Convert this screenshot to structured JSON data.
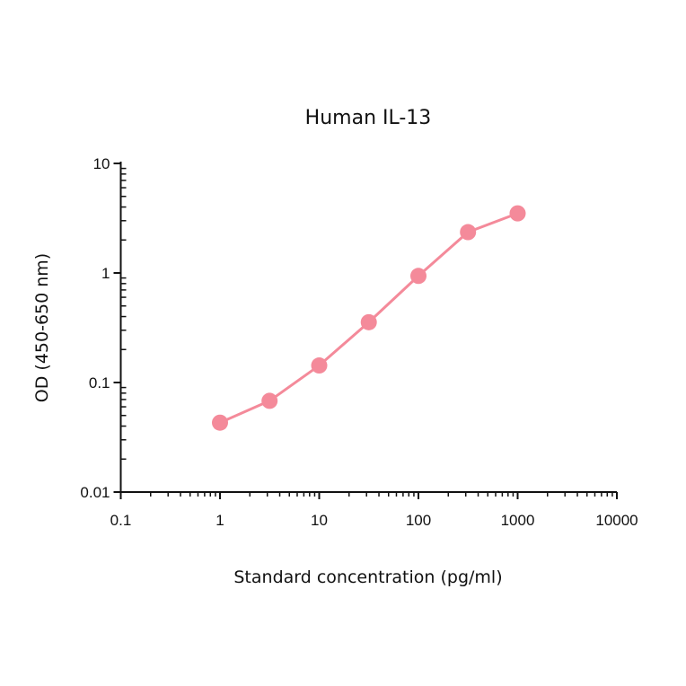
{
  "chart_data": {
    "type": "line",
    "title": "Human IL-13",
    "xlabel": "Standard concentration (pg/ml)",
    "ylabel": "OD (450-650 nm)",
    "xscale": "log",
    "yscale": "log",
    "xlim": [
      0.1,
      10000
    ],
    "ylim": [
      0.01,
      10
    ],
    "x_ticks": [
      "0.1",
      "1",
      "10",
      "100",
      "1000",
      "10000"
    ],
    "y_ticks": [
      "0.01",
      "0.1",
      "1",
      "10"
    ],
    "grid": false,
    "legend": null,
    "series": [
      {
        "name": "Human IL-13",
        "color": "#f48a9a",
        "marker": "circle",
        "x": [
          1,
          3.16,
          10,
          31.6,
          100,
          316,
          1000
        ],
        "values": [
          0.043,
          0.068,
          0.143,
          0.355,
          0.94,
          2.36,
          3.5
        ]
      }
    ]
  },
  "colors": {
    "axis": "#111111",
    "series": "#f48a9a"
  }
}
